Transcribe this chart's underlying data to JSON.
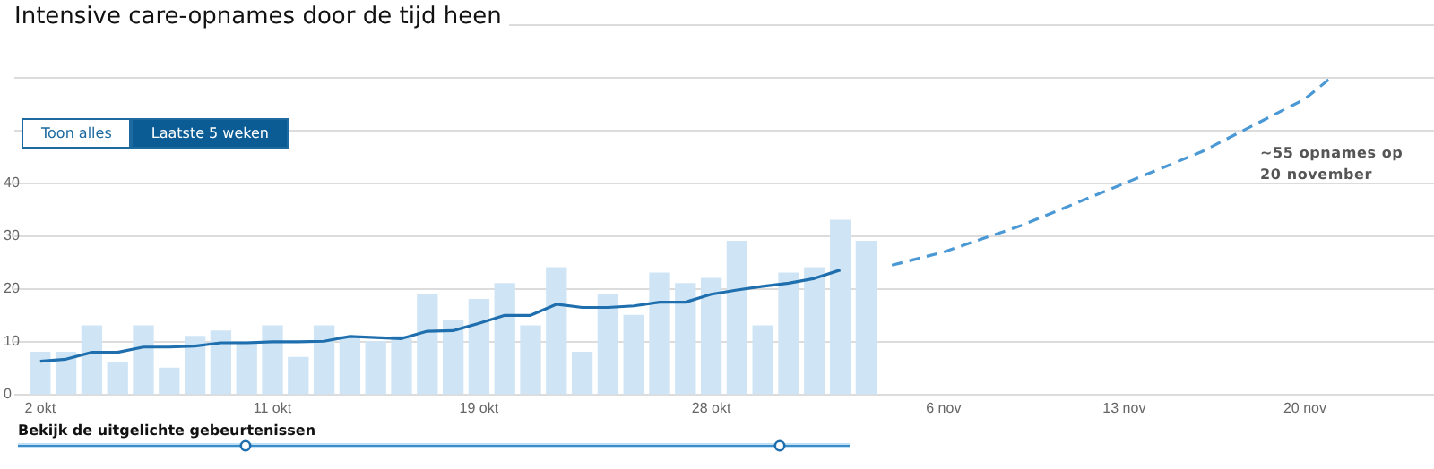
{
  "chart_data": {
    "type": "bar",
    "title": "Intensive care-opnames door de tijd heen",
    "x": [
      "--10-02",
      "--10-03",
      "--10-04",
      "--10-05",
      "--10-06",
      "--10-07",
      "--10-08",
      "--10-09",
      "--10-10",
      "--10-11",
      "--10-12",
      "--10-13",
      "--10-14",
      "--10-15",
      "--10-16",
      "--10-17",
      "--10-18",
      "--10-19",
      "--10-20",
      "--10-21",
      "--10-22",
      "--10-23",
      "--10-24",
      "--10-25",
      "--10-26",
      "--10-27",
      "--10-28",
      "--10-29",
      "--10-30",
      "--10-31",
      "--11-01",
      "--11-02",
      "--11-03"
    ],
    "series": [
      {
        "color": "#cfe5f5",
        "values": [
          8,
          8,
          13,
          6,
          13,
          5,
          11,
          12,
          10,
          13,
          7,
          13,
          11,
          10,
          11,
          19,
          14,
          18,
          21,
          13,
          24,
          8,
          19,
          15,
          23,
          21,
          22,
          29,
          13,
          23,
          24,
          33,
          29
        ]
      },
      {
        "type": "line",
        "color": "#1f6fae",
        "values": [
          6.3,
          6.7,
          8,
          8,
          9,
          9,
          9.2,
          9.8,
          9.8,
          10,
          10,
          10.1,
          11,
          10.8,
          10.6,
          12,
          12.1,
          13.5,
          15,
          15,
          17.1,
          16.5,
          16.5,
          16.8,
          17.5,
          17.5,
          19,
          19.8,
          20.5,
          21.1,
          22,
          23.6,
          null
        ]
      },
      {
        "type": "line",
        "color": "#4a98d4",
        "line_style": "dashed",
        "x": [
          "--11-04",
          "--11-06",
          "--11-09",
          "--11-13",
          "--11-16",
          "--11-20",
          "--11-21"
        ],
        "values": [
          24.5,
          27,
          32,
          40,
          46,
          56,
          60
        ]
      }
    ],
    "xlim": [
      "--10-01",
      "--11-25"
    ],
    "xticks": [
      {
        "value": "--10-02",
        "label": "2 okt"
      },
      {
        "value": "--10-11",
        "label": "11 okt"
      },
      {
        "value": "--10-19",
        "label": "19 okt"
      },
      {
        "value": "--10-28",
        "label": "28 okt"
      },
      {
        "value": "--11-06",
        "label": "6 nov"
      },
      {
        "value": "--11-13",
        "label": "13 nov"
      },
      {
        "value": "--11-20",
        "label": "20 nov"
      }
    ],
    "ylim": [
      0,
      70
    ],
    "yticks": [
      0,
      10,
      20,
      30,
      40,
      {
        "value": 50,
        "label": null
      },
      {
        "value": 60,
        "label": null
      },
      {
        "value": 70,
        "label": null
      }
    ],
    "grid": "y",
    "legend": false,
    "marker": "none",
    "annotations": [
      "~55 opnames op 20 november",
      "Toon alles",
      "Laatste 5 weken",
      "Bekijk de uitgelichte gebeurtenissen"
    ]
  }
}
